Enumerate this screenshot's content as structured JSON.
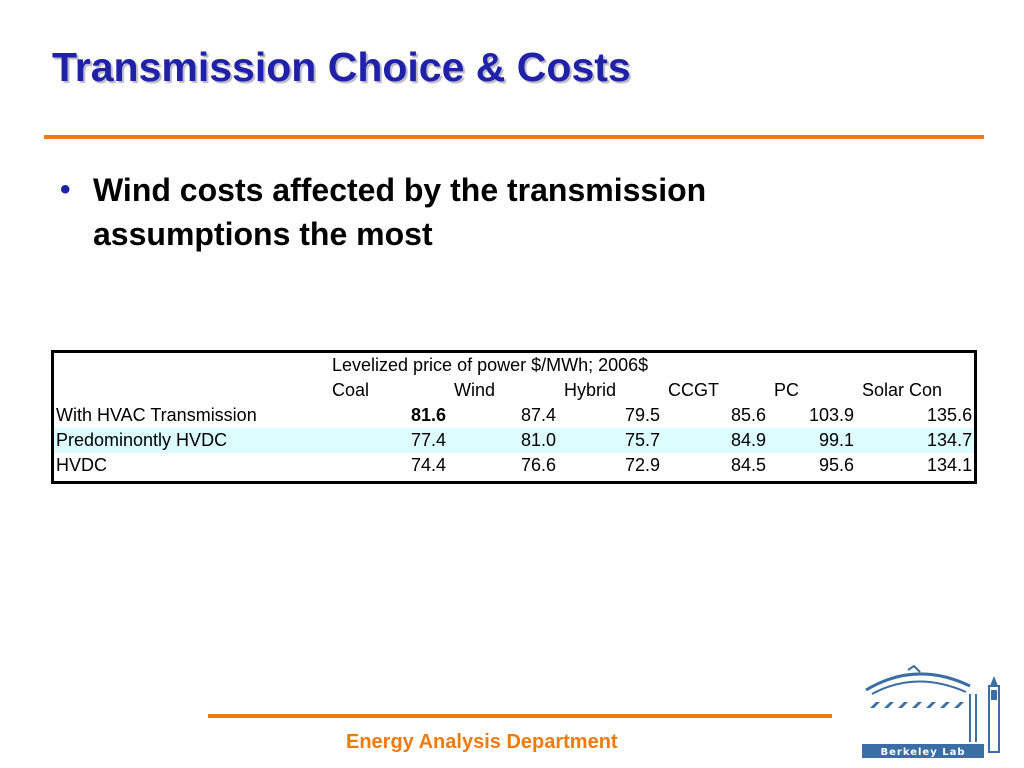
{
  "slide": {
    "title": "Transmission Choice & Costs",
    "bullet_symbol": "•",
    "bullets": [
      "Wind costs affected by the transmission assumptions the most"
    ],
    "footer": "Energy Analysis Department"
  },
  "table": {
    "caption": "Levelized price of power $/MWh; 2006$",
    "columns": [
      "Coal",
      "Wind",
      "Hybrid",
      "CCGT",
      "PC",
      "Solar Con"
    ],
    "rows": [
      {
        "label": "With HVAC Transmission",
        "values": [
          "81.6",
          "87.4",
          "79.5",
          "85.6",
          "103.9",
          "135.6"
        ]
      },
      {
        "label": "Predominontly HVDC",
        "values": [
          "77.4",
          "81.0",
          "75.7",
          "84.9",
          "99.1",
          "134.7"
        ]
      },
      {
        "label": "HVDC",
        "values": [
          "74.4",
          "76.6",
          "72.9",
          "84.5",
          "95.6",
          "134.1"
        ]
      }
    ]
  },
  "logo": {
    "text": "Berkeley Lab",
    "icon": "berkeley-lab-logo"
  },
  "colors": {
    "title": "#1f22a8",
    "accent_rule": "#f07a0a",
    "row_highlight": "#ddfcfd",
    "logo_blue": "#3a6ea5"
  }
}
